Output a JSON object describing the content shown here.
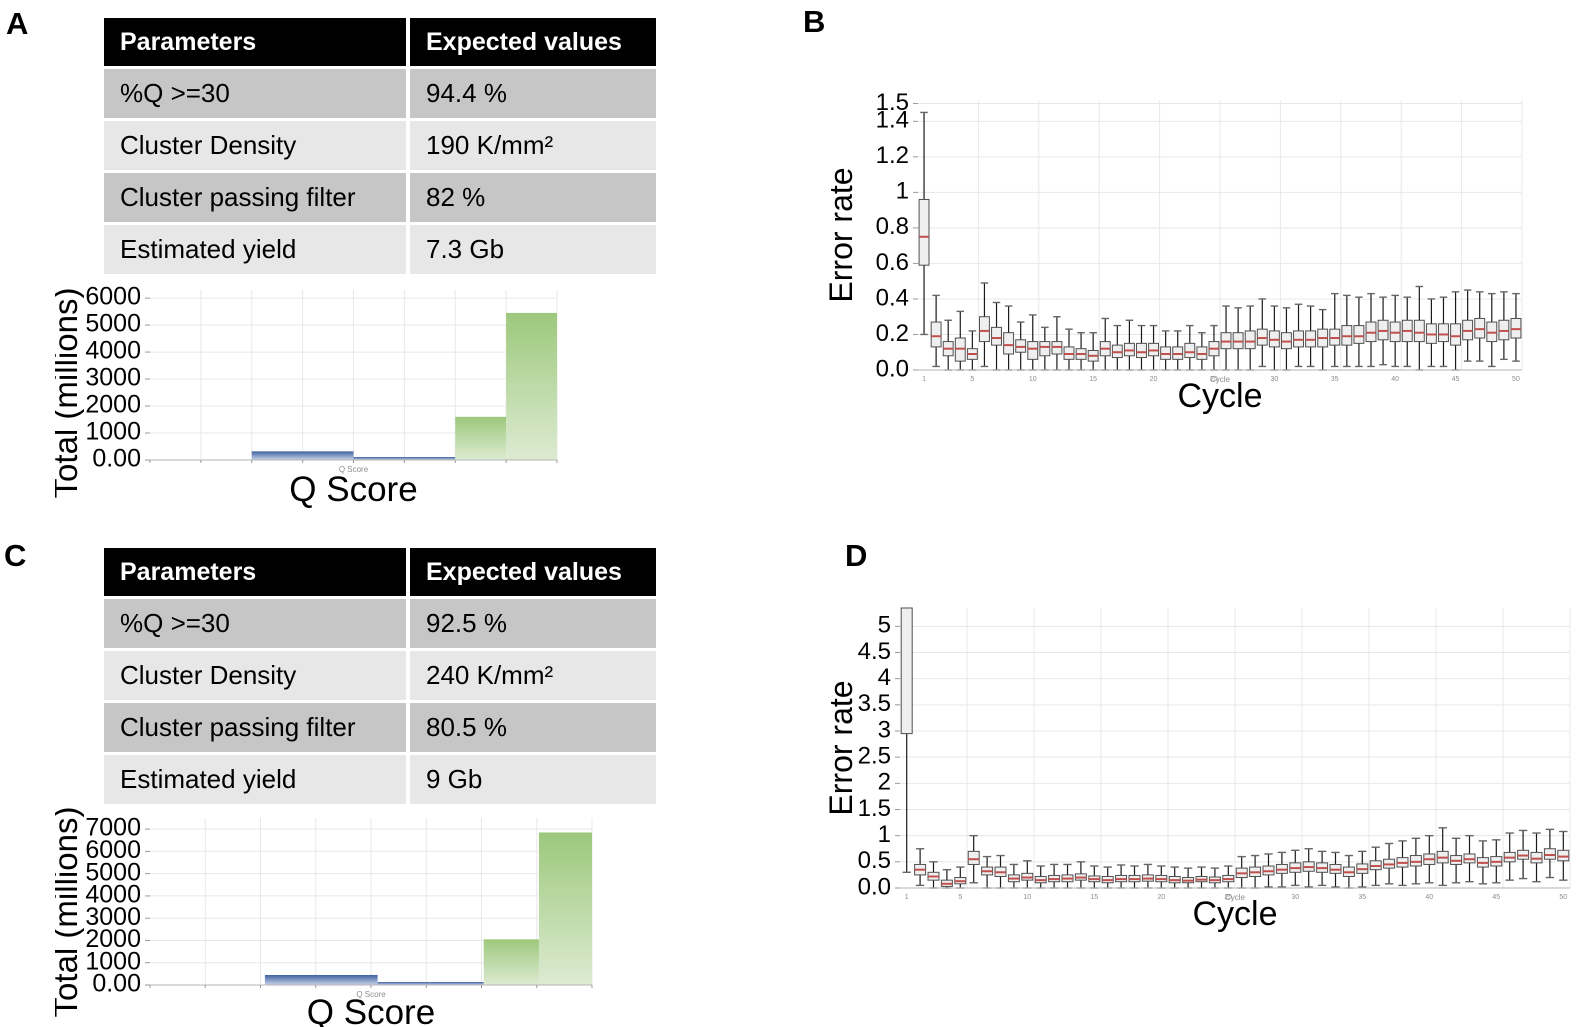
{
  "panels": {
    "a": {
      "label": "A",
      "table": {
        "col_param": "Parameters",
        "col_value": "Expected values",
        "rows": [
          {
            "param": "%Q >=30",
            "value": "94.4 %"
          },
          {
            "param": "Cluster Density",
            "value": "190 K/mm²"
          },
          {
            "param": "Cluster passing filter",
            "value": "82 %"
          },
          {
            "param": "Estimated yield",
            "value": "7.3 Gb"
          }
        ]
      }
    },
    "b": {
      "label": "B"
    },
    "c": {
      "label": "C",
      "table": {
        "col_param": "Parameters",
        "col_value": "Expected values",
        "rows": [
          {
            "param": "%Q >=30",
            "value": "92.5 %"
          },
          {
            "param": "Cluster Density",
            "value": "240 K/mm²"
          },
          {
            "param": "Cluster passing filter",
            "value": "80.5 %"
          },
          {
            "param": "Estimated yield",
            "value": "9 Gb"
          }
        ]
      }
    },
    "d": {
      "label": "D"
    }
  },
  "colors": {
    "bar_blue_top": "#3f61a1",
    "bar_blue_bottom": "#c9d4e8",
    "bar_green_top": "#9cc87c",
    "bar_green_bottom": "#ddebd2",
    "box_fill": "#efefef",
    "box_border": "#4f4f4f",
    "box_median": "#c0504d",
    "whisker": "#1a1a1a",
    "grid": "#e8e8e8",
    "axis": "#b5b5b5",
    "tiny_label": "#8c8c8c"
  },
  "chart_data": [
    {
      "id": "qscoreA",
      "panel": "A",
      "type": "bar",
      "title": "",
      "xlabel": "Q Score",
      "ylabel": "Total (millions)",
      "small_xlabel": "Q Score",
      "ylim": [
        0,
        6300
      ],
      "yticks": [
        {
          "v": 0,
          "label": "0.00"
        },
        {
          "v": 1000,
          "label": "1000"
        },
        {
          "v": 2000,
          "label": "2000"
        },
        {
          "v": 3000,
          "label": "3000"
        },
        {
          "v": 4000,
          "label": "4000"
        },
        {
          "v": 5000,
          "label": "5000"
        },
        {
          "v": 6000,
          "label": "6000"
        }
      ],
      "bars": [
        {
          "x0": 0.25,
          "x1": 0.5,
          "value": 320,
          "color": "blue"
        },
        {
          "x0": 0.5,
          "x1": 0.75,
          "value": 40,
          "color": "blue"
        },
        {
          "x0": 0.75,
          "x1": 0.875,
          "value": 1600,
          "color": "green"
        },
        {
          "x0": 0.875,
          "x1": 1.0,
          "value": 5450,
          "color": "green"
        }
      ]
    },
    {
      "id": "qscoreC",
      "panel": "C",
      "type": "bar",
      "title": "",
      "xlabel": "Q Score",
      "ylabel": "Total (millions)",
      "small_xlabel": "Q Score",
      "ylim": [
        0,
        7500
      ],
      "yticks": [
        {
          "v": 0,
          "label": "0.00"
        },
        {
          "v": 1000,
          "label": "1000"
        },
        {
          "v": 2000,
          "label": "2000"
        },
        {
          "v": 3000,
          "label": "3000"
        },
        {
          "v": 4000,
          "label": "4000"
        },
        {
          "v": 5000,
          "label": "5000"
        },
        {
          "v": 6000,
          "label": "6000"
        },
        {
          "v": 7000,
          "label": "7000"
        }
      ],
      "bars": [
        {
          "x0": 0.26,
          "x1": 0.515,
          "value": 450,
          "color": "blue"
        },
        {
          "x0": 0.515,
          "x1": 0.635,
          "value": 110,
          "color": "blue"
        },
        {
          "x0": 0.635,
          "x1": 0.755,
          "value": 50,
          "color": "blue"
        },
        {
          "x0": 0.755,
          "x1": 0.88,
          "value": 2050,
          "color": "green"
        },
        {
          "x0": 0.88,
          "x1": 1.0,
          "value": 6850,
          "color": "green"
        }
      ]
    },
    {
      "id": "errB",
      "panel": "B",
      "type": "boxplot",
      "title": "",
      "xlabel": "Cycle",
      "ylabel": "Error rate",
      "small_xlabel": "Cycle",
      "ylim": [
        0,
        1.52
      ],
      "yticks": [
        {
          "v": 0,
          "label": "0.0"
        },
        {
          "v": 0.2,
          "label": "0.2"
        },
        {
          "v": 0.4,
          "label": "0.4"
        },
        {
          "v": 0.6,
          "label": "0.6"
        },
        {
          "v": 0.8,
          "label": "0.8"
        },
        {
          "v": 1,
          "label": "1"
        },
        {
          "v": 1.2,
          "label": "1.2"
        },
        {
          "v": 1.4,
          "label": "1.4"
        },
        {
          "v": 1.5,
          "label": "1.5"
        }
      ],
      "xticks": [
        1,
        5,
        10,
        15,
        20,
        25,
        30,
        35,
        40,
        45,
        50
      ],
      "boxes": [
        [
          0.2,
          0.59,
          0.75,
          0.96,
          1.45
        ],
        [
          0.02,
          0.13,
          0.19,
          0.27,
          0.42
        ],
        [
          0.0,
          0.08,
          0.12,
          0.16,
          0.28
        ],
        [
          0.0,
          0.05,
          0.12,
          0.18,
          0.33
        ],
        [
          0.0,
          0.06,
          0.09,
          0.12,
          0.22
        ],
        [
          0.02,
          0.16,
          0.22,
          0.3,
          0.49
        ],
        [
          0.0,
          0.14,
          0.18,
          0.24,
          0.38
        ],
        [
          0.0,
          0.09,
          0.14,
          0.21,
          0.36
        ],
        [
          0.0,
          0.1,
          0.13,
          0.17,
          0.27
        ],
        [
          0.0,
          0.06,
          0.12,
          0.16,
          0.31
        ],
        [
          0.0,
          0.08,
          0.13,
          0.16,
          0.24
        ],
        [
          0.0,
          0.09,
          0.13,
          0.16,
          0.3
        ],
        [
          0.0,
          0.06,
          0.09,
          0.13,
          0.23
        ],
        [
          0.0,
          0.06,
          0.09,
          0.12,
          0.21
        ],
        [
          0.0,
          0.05,
          0.08,
          0.11,
          0.21
        ],
        [
          0.0,
          0.08,
          0.12,
          0.16,
          0.29
        ],
        [
          0.0,
          0.07,
          0.1,
          0.14,
          0.25
        ],
        [
          0.0,
          0.08,
          0.11,
          0.15,
          0.28
        ],
        [
          0.0,
          0.07,
          0.1,
          0.15,
          0.25
        ],
        [
          0.0,
          0.08,
          0.11,
          0.15,
          0.25
        ],
        [
          0.0,
          0.06,
          0.09,
          0.13,
          0.22
        ],
        [
          0.0,
          0.06,
          0.09,
          0.13,
          0.22
        ],
        [
          0.0,
          0.07,
          0.1,
          0.15,
          0.25
        ],
        [
          0.0,
          0.06,
          0.09,
          0.13,
          0.21
        ],
        [
          0.0,
          0.08,
          0.12,
          0.16,
          0.25
        ],
        [
          0.0,
          0.12,
          0.16,
          0.21,
          0.36
        ],
        [
          0.0,
          0.12,
          0.16,
          0.21,
          0.35
        ],
        [
          0.0,
          0.12,
          0.16,
          0.22,
          0.36
        ],
        [
          0.02,
          0.14,
          0.18,
          0.23,
          0.4
        ],
        [
          0.0,
          0.13,
          0.17,
          0.22,
          0.36
        ],
        [
          0.0,
          0.12,
          0.16,
          0.21,
          0.35
        ],
        [
          0.02,
          0.13,
          0.17,
          0.22,
          0.37
        ],
        [
          0.02,
          0.13,
          0.17,
          0.22,
          0.36
        ],
        [
          0.0,
          0.13,
          0.18,
          0.23,
          0.34
        ],
        [
          0.02,
          0.14,
          0.18,
          0.23,
          0.43
        ],
        [
          0.02,
          0.14,
          0.19,
          0.25,
          0.42
        ],
        [
          0.02,
          0.15,
          0.19,
          0.25,
          0.41
        ],
        [
          0.02,
          0.16,
          0.21,
          0.27,
          0.43
        ],
        [
          0.03,
          0.17,
          0.22,
          0.28,
          0.41
        ],
        [
          0.02,
          0.16,
          0.21,
          0.27,
          0.42
        ],
        [
          0.02,
          0.16,
          0.22,
          0.28,
          0.41
        ],
        [
          0.0,
          0.16,
          0.21,
          0.28,
          0.47
        ],
        [
          0.02,
          0.15,
          0.2,
          0.26,
          0.4
        ],
        [
          0.02,
          0.16,
          0.2,
          0.26,
          0.41
        ],
        [
          0.0,
          0.14,
          0.19,
          0.26,
          0.44
        ],
        [
          0.05,
          0.17,
          0.22,
          0.28,
          0.45
        ],
        [
          0.05,
          0.18,
          0.23,
          0.29,
          0.44
        ],
        [
          0.02,
          0.16,
          0.21,
          0.27,
          0.43
        ],
        [
          0.06,
          0.17,
          0.22,
          0.28,
          0.44
        ],
        [
          0.05,
          0.18,
          0.23,
          0.29,
          0.43
        ]
      ]
    },
    {
      "id": "errD",
      "panel": "D",
      "type": "boxplot",
      "title": "",
      "xlabel": "Cycle",
      "ylabel": "Error rate",
      "small_xlabel": "Cycle",
      "ylim": [
        0,
        5.35
      ],
      "yticks": [
        {
          "v": 0,
          "label": "0.0"
        },
        {
          "v": 0.5,
          "label": "0.5"
        },
        {
          "v": 1,
          "label": "1"
        },
        {
          "v": 1.5,
          "label": "1.5"
        },
        {
          "v": 2,
          "label": "2"
        },
        {
          "v": 2.5,
          "label": "2.5"
        },
        {
          "v": 3,
          "label": "3"
        },
        {
          "v": 3.5,
          "label": "3.5"
        },
        {
          "v": 4,
          "label": "4"
        },
        {
          "v": 4.5,
          "label": "4.5"
        },
        {
          "v": 5,
          "label": "5"
        }
      ],
      "xticks": [
        1,
        5,
        10,
        15,
        20,
        25,
        30,
        35,
        40,
        45,
        50
      ],
      "boxes": [
        [
          0.3,
          2.95,
          5.5,
          5.6,
          5.6
        ],
        [
          0.05,
          0.25,
          0.35,
          0.45,
          0.75
        ],
        [
          0.0,
          0.15,
          0.22,
          0.3,
          0.5
        ],
        [
          0.0,
          0.03,
          0.08,
          0.15,
          0.35
        ],
        [
          0.0,
          0.08,
          0.13,
          0.2,
          0.4
        ],
        [
          0.1,
          0.45,
          0.55,
          0.7,
          1.0
        ],
        [
          0.0,
          0.25,
          0.32,
          0.4,
          0.6
        ],
        [
          0.0,
          0.22,
          0.3,
          0.4,
          0.62
        ],
        [
          0.0,
          0.12,
          0.18,
          0.25,
          0.45
        ],
        [
          0.0,
          0.15,
          0.2,
          0.28,
          0.52
        ],
        [
          0.0,
          0.1,
          0.15,
          0.22,
          0.42
        ],
        [
          0.0,
          0.12,
          0.17,
          0.24,
          0.45
        ],
        [
          0.0,
          0.12,
          0.18,
          0.25,
          0.45
        ],
        [
          0.0,
          0.15,
          0.2,
          0.27,
          0.5
        ],
        [
          0.0,
          0.12,
          0.17,
          0.23,
          0.42
        ],
        [
          0.0,
          0.1,
          0.15,
          0.22,
          0.4
        ],
        [
          0.0,
          0.12,
          0.17,
          0.24,
          0.44
        ],
        [
          0.0,
          0.12,
          0.17,
          0.24,
          0.42
        ],
        [
          0.0,
          0.13,
          0.18,
          0.25,
          0.45
        ],
        [
          0.0,
          0.12,
          0.17,
          0.24,
          0.42
        ],
        [
          0.0,
          0.1,
          0.15,
          0.22,
          0.4
        ],
        [
          0.0,
          0.1,
          0.14,
          0.2,
          0.38
        ],
        [
          0.0,
          0.12,
          0.16,
          0.22,
          0.4
        ],
        [
          0.0,
          0.1,
          0.15,
          0.21,
          0.38
        ],
        [
          0.0,
          0.12,
          0.17,
          0.24,
          0.42
        ],
        [
          0.0,
          0.2,
          0.28,
          0.38,
          0.6
        ],
        [
          0.0,
          0.22,
          0.3,
          0.4,
          0.62
        ],
        [
          0.02,
          0.25,
          0.32,
          0.42,
          0.65
        ],
        [
          0.02,
          0.28,
          0.35,
          0.45,
          0.68
        ],
        [
          0.05,
          0.3,
          0.38,
          0.48,
          0.72
        ],
        [
          0.02,
          0.32,
          0.4,
          0.5,
          0.75
        ],
        [
          0.05,
          0.3,
          0.38,
          0.48,
          0.7
        ],
        [
          0.02,
          0.28,
          0.35,
          0.45,
          0.68
        ],
        [
          0.0,
          0.22,
          0.3,
          0.4,
          0.62
        ],
        [
          0.02,
          0.28,
          0.36,
          0.46,
          0.7
        ],
        [
          0.05,
          0.35,
          0.42,
          0.52,
          0.78
        ],
        [
          0.08,
          0.38,
          0.45,
          0.55,
          0.85
        ],
        [
          0.05,
          0.4,
          0.48,
          0.58,
          0.9
        ],
        [
          0.08,
          0.42,
          0.5,
          0.62,
          0.95
        ],
        [
          0.1,
          0.45,
          0.55,
          0.65,
          1.0
        ],
        [
          0.05,
          0.48,
          0.58,
          0.7,
          1.15
        ],
        [
          0.1,
          0.45,
          0.52,
          0.62,
          0.95
        ],
        [
          0.12,
          0.48,
          0.55,
          0.65,
          1.0
        ],
        [
          0.08,
          0.4,
          0.48,
          0.58,
          0.9
        ],
        [
          0.1,
          0.42,
          0.5,
          0.6,
          0.92
        ],
        [
          0.15,
          0.5,
          0.58,
          0.68,
          1.05
        ],
        [
          0.18,
          0.55,
          0.62,
          0.72,
          1.1
        ],
        [
          0.12,
          0.48,
          0.56,
          0.68,
          1.05
        ],
        [
          0.2,
          0.55,
          0.63,
          0.75,
          1.12
        ],
        [
          0.15,
          0.52,
          0.6,
          0.72,
          1.08
        ]
      ]
    }
  ]
}
